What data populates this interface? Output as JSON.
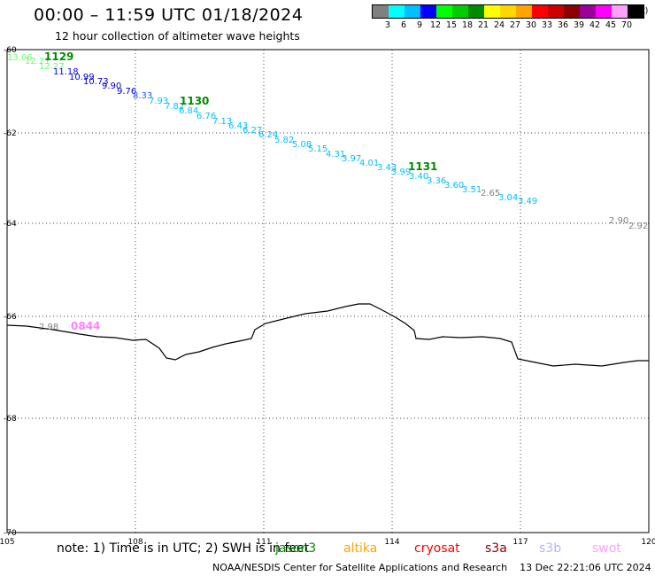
{
  "header": {
    "title": "00:00 – 11:59 UTC 01/18/2024",
    "subtitle": "12 hour collection of altimeter wave heights"
  },
  "color_scale": {
    "colors": [
      "#808080",
      "#00ffff",
      "#00bfff",
      "#0000ff",
      "#00ff00",
      "#00cd00",
      "#008b00",
      "#ffff00",
      "#ffd700",
      "#ffa500",
      "#ff0000",
      "#cd0000",
      "#8b0000",
      "#9b009b",
      "#ff00ff",
      "#ffa0ff",
      "#000000"
    ],
    "labels": [
      "3",
      "6",
      "9",
      "12",
      "15",
      "18",
      "21",
      "24",
      "27",
      "30",
      "33",
      "36",
      "39",
      "42",
      "45",
      "70"
    ],
    "unit": "(ft)"
  },
  "axes": {
    "lon_labels": [
      "105",
      "108",
      "111",
      "114",
      "117",
      "120"
    ],
    "lat_labels": [
      "-60",
      "-62",
      "-64",
      "-66",
      "-68",
      "-70"
    ]
  },
  "passes": [
    {
      "time": "1129",
      "color": "#008b00"
    },
    {
      "time": "1130",
      "color": "#008b00"
    },
    {
      "time": "1131",
      "color": "#008b00"
    },
    {
      "time": "0844",
      "color": "#ff80ff"
    }
  ],
  "wave_heights": [
    {
      "text": "13.06",
      "color": "#66ff66"
    },
    {
      "text": "12.21",
      "color": "#66ff66"
    },
    {
      "text": "12.27",
      "color": "#66ff66"
    },
    {
      "text": "11.18",
      "color": "#0000ff"
    },
    {
      "text": "10.99",
      "color": "#0000cd"
    },
    {
      "text": "10.73",
      "color": "#0000cd"
    },
    {
      "text": "9.90",
      "color": "#0000cd"
    },
    {
      "text": "9.76",
      "color": "#0000cd"
    },
    {
      "text": "8.33",
      "color": "#1e5aff"
    },
    {
      "text": "7.93",
      "color": "#00bfff"
    },
    {
      "text": "7.82",
      "color": "#00bfff"
    },
    {
      "text": "6.84",
      "color": "#00bfff"
    },
    {
      "text": "6.76",
      "color": "#00bfff"
    },
    {
      "text": "7.13",
      "color": "#00bfff"
    },
    {
      "text": "6.43",
      "color": "#00bfff"
    },
    {
      "text": "6.27",
      "color": "#00bfff"
    },
    {
      "text": "6.24",
      "color": "#00bfff"
    },
    {
      "text": "5.82",
      "color": "#00bfff"
    },
    {
      "text": "5.08",
      "color": "#00bfff"
    },
    {
      "text": "5.15",
      "color": "#00bfff"
    },
    {
      "text": "4.31",
      "color": "#00bfff"
    },
    {
      "text": "3.97",
      "color": "#00bfff"
    },
    {
      "text": "4.01",
      "color": "#00bfff"
    },
    {
      "text": "3.43",
      "color": "#00bfff"
    },
    {
      "text": "3.99",
      "color": "#00bfff"
    },
    {
      "text": "3.40",
      "color": "#00bfff"
    },
    {
      "text": "3.36",
      "color": "#00bfff"
    },
    {
      "text": "3.60",
      "color": "#00bfff"
    },
    {
      "text": "3.51",
      "color": "#00bfff"
    },
    {
      "text": "2.65",
      "color": "#808080"
    },
    {
      "text": "3.04",
      "color": "#00bfff"
    },
    {
      "text": "3.49",
      "color": "#00bfff"
    },
    {
      "text": "2.90",
      "color": "#808080"
    },
    {
      "text": "2.92",
      "color": "#808080"
    },
    {
      "text": "2.98",
      "color": "#808080"
    }
  ],
  "legend": {
    "note": "note: 1) Time is in UTC; 2) SWH is in feet",
    "satellites": [
      {
        "name": "jason3",
        "color": "#008b00"
      },
      {
        "name": "altika",
        "color": "#ffa500"
      },
      {
        "name": "cryosat",
        "color": "#ff0000"
      },
      {
        "name": "s3a",
        "color": "#8b0000"
      },
      {
        "name": "s3b",
        "color": "#b4b4ff"
      },
      {
        "name": "swot",
        "color": "#ffa0ff"
      }
    ]
  },
  "footer": {
    "credit": "NOAA/NESDIS Center for Satellite Applications and Research",
    "timestamp": "13 Dec 22:21:06 UTC 2024"
  }
}
